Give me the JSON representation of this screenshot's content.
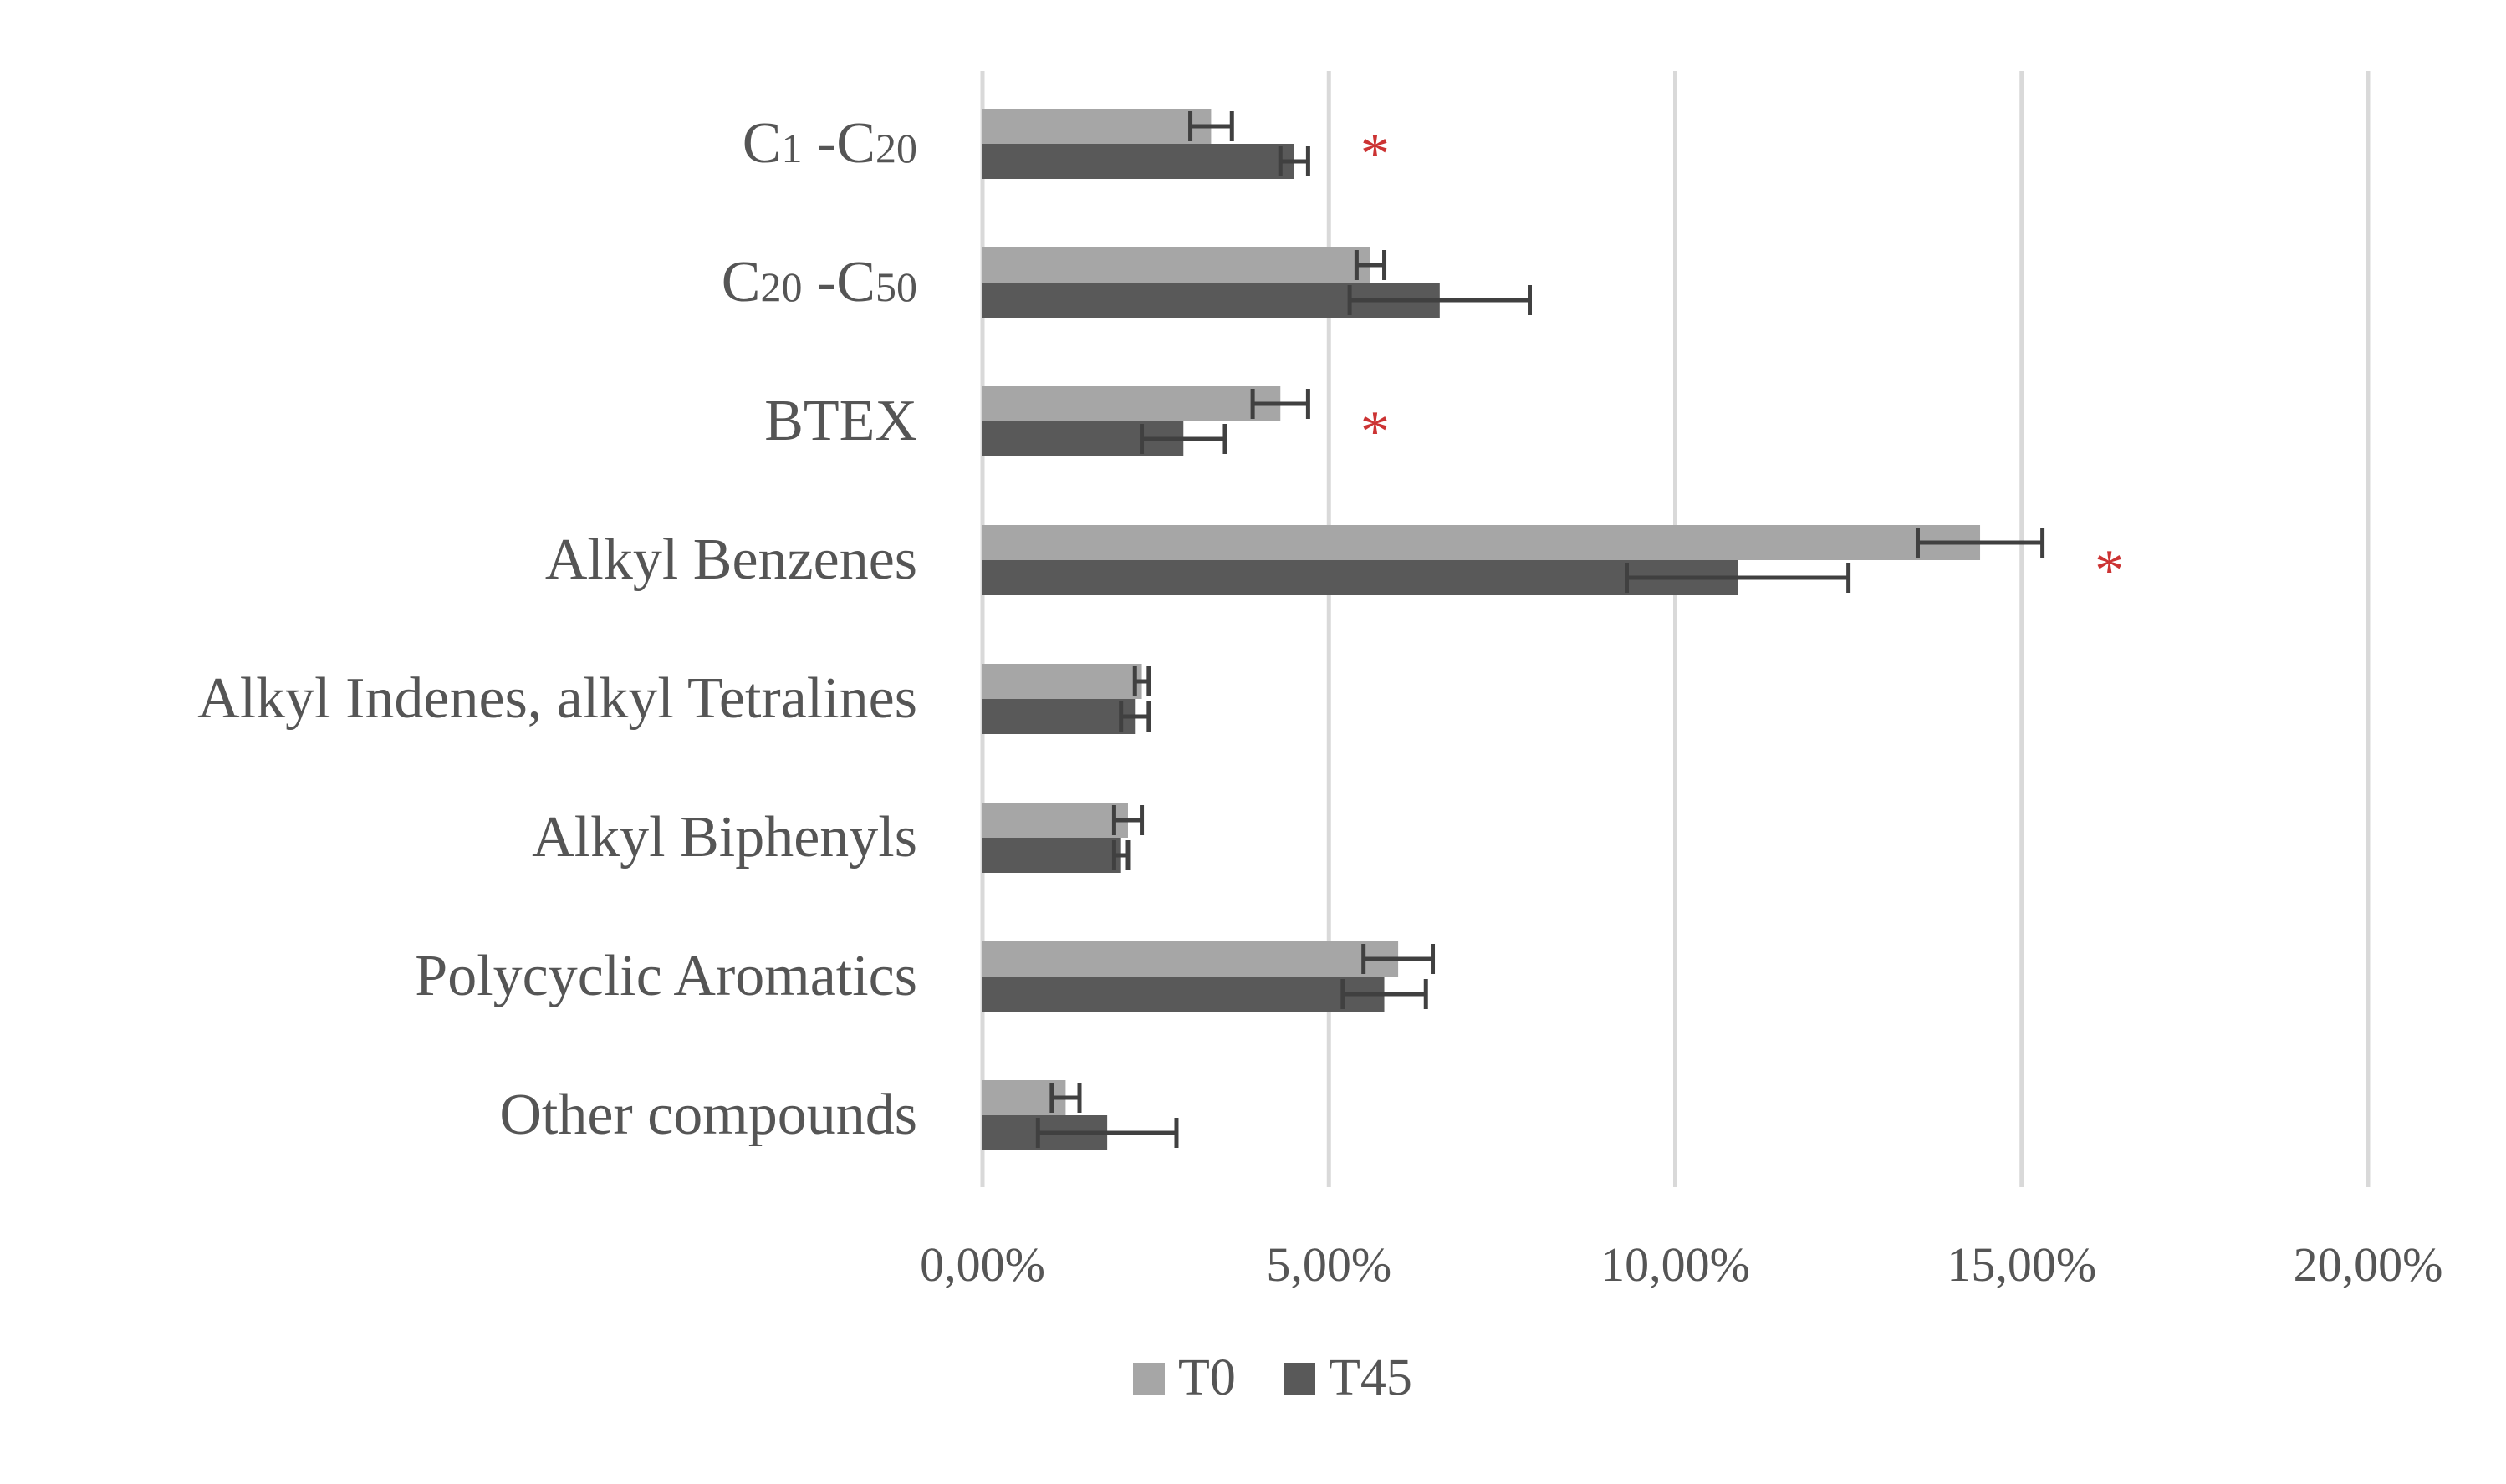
{
  "chart_data": {
    "type": "bar",
    "orientation": "horizontal",
    "categories": [
      {
        "parts": [
          {
            "t": "C",
            "sub": false
          },
          {
            "t": "1",
            "sub": true
          },
          {
            "t": " -C",
            "sub": false
          },
          {
            "t": "20",
            "sub": true
          }
        ]
      },
      {
        "parts": [
          {
            "t": "C",
            "sub": false
          },
          {
            "t": "20",
            "sub": true
          },
          {
            "t": " -C",
            "sub": false
          },
          {
            "t": "50",
            "sub": true
          }
        ]
      },
      {
        "parts": [
          {
            "t": "BTEX",
            "sub": false
          }
        ]
      },
      {
        "parts": [
          {
            "t": "Alkyl Benzenes",
            "sub": false
          }
        ]
      },
      {
        "parts": [
          {
            "t": "Alkyl Indenes, alkyl Tetralines",
            "sub": false
          }
        ]
      },
      {
        "parts": [
          {
            "t": "Alkyl Biphenyls",
            "sub": false
          }
        ]
      },
      {
        "parts": [
          {
            "t": "Polycyclic Aromatics",
            "sub": false
          }
        ]
      },
      {
        "parts": [
          {
            "t": "Other compounds",
            "sub": false
          }
        ]
      }
    ],
    "series": [
      {
        "name": "T0",
        "color": "#a6a6a6",
        "values": [
          3.3,
          5.6,
          4.3,
          14.4,
          2.3,
          2.1,
          6.0,
          1.2
        ],
        "errors": [
          0.3,
          0.2,
          0.4,
          0.9,
          0.1,
          0.2,
          0.5,
          0.2
        ]
      },
      {
        "name": "T45",
        "color": "#595959",
        "values": [
          4.5,
          6.6,
          2.9,
          10.9,
          2.2,
          2.0,
          5.8,
          1.8
        ],
        "errors": [
          0.2,
          1.3,
          0.6,
          1.6,
          0.2,
          0.1,
          0.6,
          1.0
        ]
      }
    ],
    "significance": [
      "*",
      "",
      "*",
      "*",
      "",
      "",
      "",
      ""
    ],
    "significance_color": "#cc3333",
    "xlim": [
      0,
      20
    ],
    "xticks": [
      "0,00%",
      "5,00%",
      "10,00%",
      "15,00%",
      "20,00%"
    ],
    "xtick_values": [
      0,
      5,
      10,
      15,
      20
    ],
    "title": "",
    "xlabel": "",
    "ylabel": "",
    "grid": "vertical",
    "legend_position": "bottom-center",
    "gridline_color": "#d9d9d9",
    "text_color": "#555555"
  }
}
